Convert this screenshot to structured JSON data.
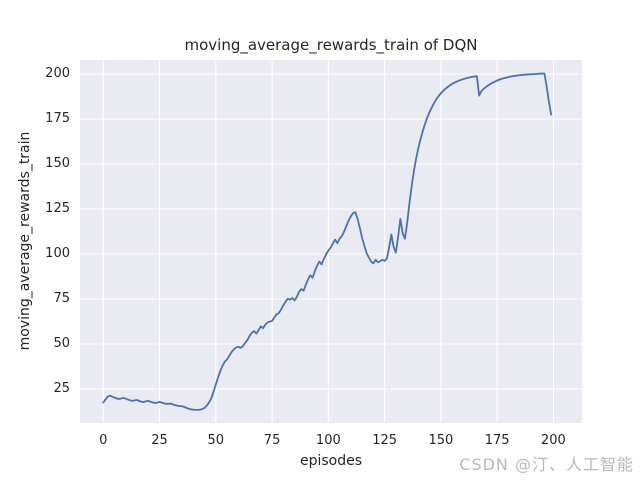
{
  "watermark": "CSDN @汀、人工智能",
  "colors": {
    "figure_background": "#ffffff",
    "axes_background": "#eaeaf2",
    "grid": "#ffffff",
    "line": "#4c72b0",
    "text": "#262626",
    "watermark": "#b9b9b9"
  },
  "chart_data": {
    "type": "line",
    "title": "moving_average_rewards_train of DQN",
    "xlabel": "episodes",
    "ylabel": "moving_average_rewards_train",
    "legend": null,
    "grid": true,
    "x_ticks": [
      0,
      25,
      50,
      75,
      100,
      125,
      150,
      175,
      200
    ],
    "y_ticks": [
      25,
      50,
      75,
      100,
      125,
      150,
      175,
      200
    ],
    "xlim": [
      -10.35,
      212.7
    ],
    "ylim": [
      6.1,
      207.8
    ],
    "line_color": "#4c72b0",
    "x_start": 0,
    "x_step": 1,
    "y": [
      17.5,
      19.2,
      20.8,
      21.3,
      20.7,
      20.2,
      19.7,
      19.4,
      19.8,
      20.0,
      19.6,
      19.1,
      18.7,
      18.4,
      18.7,
      18.9,
      18.3,
      17.9,
      17.7,
      18.2,
      18.4,
      17.9,
      17.5,
      17.2,
      17.4,
      17.8,
      17.4,
      17.0,
      16.7,
      16.8,
      16.9,
      16.4,
      16.0,
      15.7,
      15.5,
      15.4,
      15.0,
      14.5,
      14.0,
      13.7,
      13.5,
      13.4,
      13.4,
      13.5,
      13.8,
      14.5,
      15.8,
      17.5,
      19.8,
      23.5,
      27.5,
      31.5,
      35.0,
      38.0,
      40.2,
      41.5,
      43.5,
      45.5,
      47.0,
      48.0,
      48.5,
      47.8,
      48.8,
      50.5,
      52.2,
      54.5,
      56.2,
      57.2,
      55.8,
      57.8,
      59.8,
      58.8,
      60.8,
      62.0,
      62.5,
      62.8,
      64.8,
      66.5,
      67.2,
      69.2,
      71.5,
      73.5,
      75.2,
      74.6,
      75.6,
      74.2,
      76.2,
      79.0,
      80.5,
      79.6,
      83.0,
      86.0,
      88.2,
      86.8,
      90.5,
      93.5,
      95.8,
      94.2,
      97.2,
      99.8,
      102.0,
      103.5,
      105.8,
      108.0,
      106.0,
      108.5,
      110.0,
      112.5,
      115.5,
      118.5,
      121.0,
      122.8,
      123.2,
      119.5,
      114.5,
      109.0,
      104.5,
      100.5,
      98.0,
      95.8,
      94.8,
      96.8,
      95.4,
      96.0,
      96.8,
      96.2,
      97.5,
      103.5,
      110.8,
      104.0,
      100.8,
      109.5,
      119.5,
      111.5,
      108.5,
      117.0,
      128.0,
      137.5,
      146.0,
      153.0,
      159.0,
      164.0,
      168.5,
      172.5,
      176.0,
      179.0,
      181.5,
      184.0,
      186.0,
      187.8,
      189.3,
      190.6,
      191.8,
      192.8,
      193.7,
      194.5,
      195.2,
      195.8,
      196.3,
      196.8,
      197.2,
      197.6,
      197.9,
      198.2,
      198.4,
      198.6,
      198.8,
      188.0,
      190.5,
      191.8,
      192.8,
      193.7,
      194.5,
      195.2,
      195.8,
      196.4,
      196.9,
      197.3,
      197.7,
      198.0,
      198.3,
      198.6,
      198.8,
      199.0,
      199.2,
      199.4,
      199.5,
      199.6,
      199.7,
      199.8,
      199.9,
      199.9,
      200.0,
      200.1,
      200.2,
      200.3,
      200.3,
      193.0,
      184.5,
      177.5
    ]
  }
}
